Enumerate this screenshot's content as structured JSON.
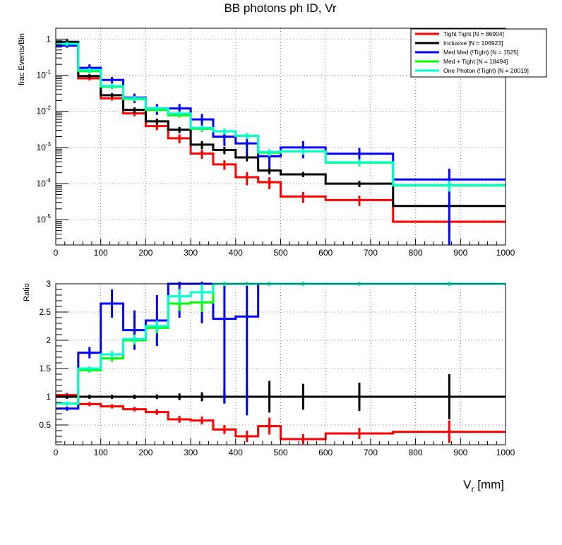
{
  "chart_data": [
    {
      "type": "line",
      "subtype": "step-histogram",
      "title": "BB photons ph ID, Vr",
      "ylabel": "frac Events/Bin",
      "xlabel": "",
      "xlim": [
        0,
        1000
      ],
      "ylim": [
        2e-06,
        2
      ],
      "yscale": "log",
      "grid": true,
      "x_ticks": [
        0,
        100,
        200,
        300,
        400,
        500,
        600,
        700,
        800,
        900,
        1000
      ],
      "y_ticks": [
        {
          "value": 1,
          "label": "1"
        },
        {
          "value": 0.1,
          "label": "10",
          "exp": "-1"
        },
        {
          "value": 0.01,
          "label": "10",
          "exp": "-2"
        },
        {
          "value": 0.001,
          "label": "10",
          "exp": "-3"
        },
        {
          "value": 0.0001,
          "label": "10",
          "exp": "-4"
        },
        {
          "value": 1e-05,
          "label": "10",
          "exp": "-5"
        }
      ],
      "bin_edges": [
        0,
        50,
        100,
        150,
        200,
        250,
        300,
        350,
        400,
        450,
        500,
        600,
        750,
        1000
      ],
      "legend": {
        "placement": "top-right"
      },
      "series": [
        {
          "name": "Tight Tight [N = 86904]",
          "color": "#ff0000",
          "values": [
            0.82,
            0.082,
            0.023,
            0.0088,
            0.0039,
            0.0018,
            0.00068,
            0.00034,
            0.00015,
            0.00011,
            4.4e-05,
            3.5e-05,
            8.8e-06
          ],
          "err_lo": [
            0,
            0,
            0.003,
            0.0015,
            0.0009,
            0.0005,
            0.0002,
            0.0001,
            6e-05,
            4e-05,
            1.5e-05,
            1.1e-05,
            4e-06
          ],
          "err_hi": [
            0,
            0,
            0.003,
            0.0015,
            0.0009,
            0.0005,
            0.0002,
            0.0001,
            6e-05,
            4e-05,
            1.5e-05,
            1.1e-05,
            4e-06
          ]
        },
        {
          "name": "Inclusive [N = 106923]",
          "color": "#000000",
          "values": [
            0.84,
            0.095,
            0.028,
            0.011,
            0.0053,
            0.0031,
            0.0012,
            0.00085,
            0.00053,
            0.00023,
            0.00018,
            0.0001,
            2.4e-05
          ],
          "err_lo": [
            0,
            0,
            0.003,
            0.002,
            0.001,
            0.0006,
            0.0003,
            0.0002,
            0.00012,
            5e-05,
            3e-05,
            2e-05,
            0
          ],
          "err_hi": [
            0,
            0,
            0.003,
            0.002,
            0.001,
            0.0006,
            0.0003,
            0.0002,
            0.00012,
            5e-05,
            3e-05,
            2e-05,
            0
          ]
        },
        {
          "name": "Med Med (!Tight) [N = 1525]",
          "color": "#0000ff",
          "values": [
            0.66,
            0.16,
            0.074,
            0.024,
            0.012,
            0.012,
            0.006,
            0.002,
            0.0013,
            0.00057,
            0.001,
            0.00067,
            0.00013
          ],
          "err_lo": [
            0,
            0.04,
            0.015,
            0.007,
            0.004,
            0.004,
            0.0025,
            0.0009,
            0.0007,
            0.0003,
            0.0005,
            0.0003,
            0.00013
          ],
          "err_hi": [
            0,
            0.04,
            0.015,
            0.007,
            0.004,
            0.004,
            0.0025,
            0.0009,
            0.0007,
            0.0003,
            0.0005,
            0.0003,
            0.00013
          ]
        },
        {
          "name": "Med + Tight [N = 18494]",
          "color": "#00ff00",
          "values": [
            0.74,
            0.13,
            0.048,
            0.022,
            0.011,
            0.0078,
            0.0033,
            0.0028,
            0.0021,
            0.00072,
            0.00078,
            0.00038,
            8.8e-05
          ],
          "err_lo": [
            0,
            0.01,
            0.006,
            0.003,
            0.0015,
            0.001,
            0.0006,
            0.0005,
            0.0004,
            0.00015,
            0.00015,
            8e-05,
            0
          ],
          "err_hi": [
            0,
            0.01,
            0.006,
            0.003,
            0.0015,
            0.001,
            0.0006,
            0.0005,
            0.0004,
            0.00015,
            0.00015,
            8e-05,
            0
          ]
        },
        {
          "name": "One Photon (!Tight) [N = 20019]",
          "color": "#00ffcc",
          "values": [
            0.74,
            0.14,
            0.05,
            0.023,
            0.012,
            0.0087,
            0.0035,
            0.0028,
            0.0021,
            0.00075,
            0.00078,
            0.00039,
            9e-05
          ],
          "err_lo": [
            0,
            0.01,
            0.006,
            0.003,
            0.0015,
            0.001,
            0.0006,
            0.0005,
            0.0004,
            0.00015,
            0.00015,
            8e-05,
            3e-05
          ],
          "err_hi": [
            0,
            0.01,
            0.006,
            0.003,
            0.0015,
            0.001,
            0.0006,
            0.0005,
            0.0004,
            0.00015,
            0.00015,
            8e-05,
            3e-05
          ]
        }
      ]
    },
    {
      "type": "line",
      "subtype": "step-histogram",
      "title": "",
      "ylabel": "Ratio",
      "xlabel": "V",
      "xlabel_sub": "r",
      "xlabel_unit": " [mm]",
      "xlim": [
        0,
        1000
      ],
      "ylim": [
        0.15,
        3
      ],
      "grid": true,
      "x_ticks": [
        0,
        100,
        200,
        300,
        400,
        500,
        600,
        700,
        800,
        900,
        1000
      ],
      "y_ticks": [
        0.5,
        1,
        1.5,
        2,
        2.5,
        3
      ],
      "y_tick_labels": [
        "0.5",
        "1",
        "1.5",
        "2",
        "2.5",
        "3"
      ],
      "bin_edges": [
        0,
        50,
        100,
        150,
        200,
        250,
        300,
        350,
        400,
        450,
        500,
        600,
        750,
        1000
      ],
      "series": [
        {
          "name": "Tight Tight",
          "color": "#ff0000",
          "values": [
            1.03,
            0.87,
            0.83,
            0.78,
            0.73,
            0.6,
            0.58,
            0.42,
            0.3,
            0.48,
            0.25,
            0.35,
            0.38
          ],
          "err_lo": [
            0,
            0.02,
            0.03,
            0.04,
            0.05,
            0.06,
            0.07,
            0.08,
            0.1,
            0.15,
            0.09,
            0.1,
            0.2
          ],
          "err_hi": [
            0,
            0.02,
            0.03,
            0.04,
            0.05,
            0.06,
            0.07,
            0.08,
            0.1,
            0.15,
            0.09,
            0.1,
            0.2
          ]
        },
        {
          "name": "Inclusive",
          "color": "#000000",
          "values": [
            1,
            1,
            1,
            1,
            1,
            1,
            1,
            1,
            1,
            1,
            1,
            1,
            1
          ],
          "err_lo": [
            0,
            0.01,
            0.02,
            0.03,
            0.04,
            0.06,
            0.08,
            0.12,
            0.15,
            0.28,
            0.23,
            0.25,
            0.4
          ],
          "err_hi": [
            0,
            0.01,
            0.02,
            0.03,
            0.04,
            0.06,
            0.08,
            0.12,
            0.15,
            0.28,
            0.23,
            0.25,
            0.4
          ]
        },
        {
          "name": "Med Med (!Tight)",
          "color": "#0000ff",
          "values": [
            0.79,
            1.78,
            2.65,
            2.18,
            2.35,
            3.0,
            3.0,
            2.38,
            2.42,
            3.0,
            3.0,
            3.0,
            3.0
          ],
          "err_lo": [
            0.02,
            0.1,
            0.25,
            0.35,
            0.45,
            0.6,
            0.7,
            1.5,
            1.75,
            0,
            0,
            0,
            0
          ],
          "err_hi": [
            0.02,
            0.1,
            0.25,
            0.35,
            0.45,
            0.6,
            0.7,
            1.5,
            1.75,
            0,
            0,
            0,
            0
          ]
        },
        {
          "name": "Med + Tight",
          "color": "#00ff00",
          "values": [
            0.88,
            1.47,
            1.68,
            2.0,
            2.22,
            2.65,
            2.67,
            3.0,
            3.0,
            3.0,
            3.0,
            3.0,
            3.0
          ],
          "err_lo": [
            0,
            0.04,
            0.06,
            0.08,
            0.1,
            0.13,
            0.17,
            0,
            0,
            0,
            0,
            0,
            0
          ],
          "err_hi": [
            0,
            0.04,
            0.06,
            0.08,
            0.1,
            0.13,
            0.17,
            0,
            0,
            0,
            0,
            0,
            0
          ]
        },
        {
          "name": "One Photon (!Tight)",
          "color": "#00ffcc",
          "values": [
            0.88,
            1.5,
            1.75,
            2.02,
            2.25,
            2.78,
            2.85,
            3.0,
            3.0,
            3.0,
            3.0,
            3.0,
            3.0
          ],
          "err_lo": [
            0,
            0.04,
            0.06,
            0.08,
            0.1,
            0.13,
            0.17,
            0,
            0,
            0,
            0,
            0,
            0
          ],
          "err_hi": [
            0,
            0.04,
            0.06,
            0.08,
            0.1,
            0.13,
            0.17,
            0,
            0,
            0,
            0,
            0,
            0
          ]
        }
      ]
    }
  ]
}
